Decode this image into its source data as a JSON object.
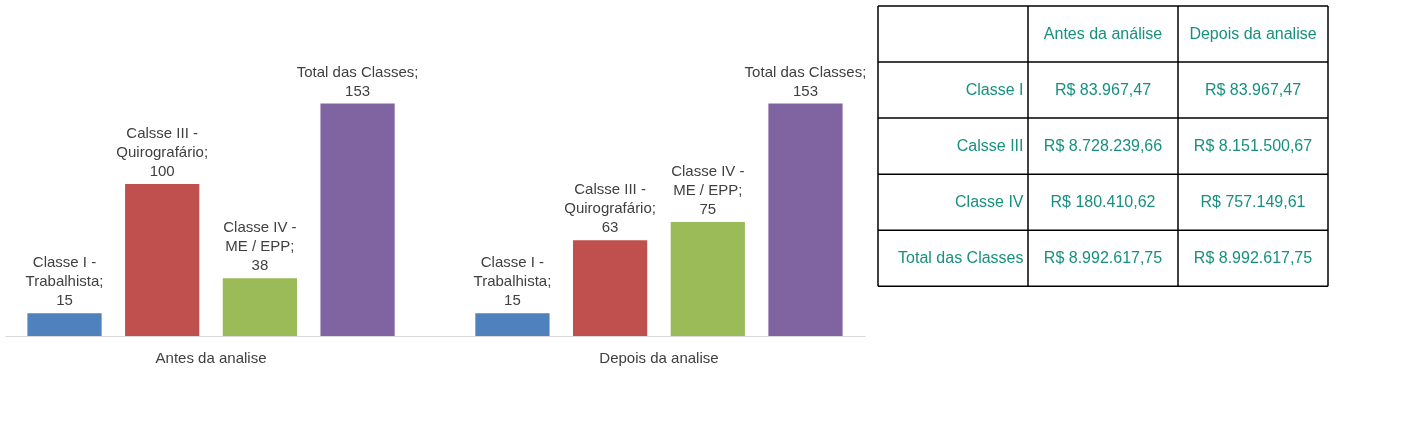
{
  "chart_data": [
    {
      "type": "bar",
      "categories": [
        "Antes da analise",
        "Depois da analise"
      ],
      "data_labels": true,
      "series": [
        {
          "name": "Classe I - Trabalhista;",
          "color": "#4f81bd",
          "values": [
            15,
            15
          ]
        },
        {
          "name": "Calsse III - Quirografário;",
          "color": "#c0504d",
          "values": [
            100,
            63
          ]
        },
        {
          "name": "Classe IV - ME / EPP;",
          "color": "#9bbb59",
          "values": [
            38,
            75
          ]
        },
        {
          "name": "Total das Classes;",
          "color": "#8064a2",
          "values": [
            153,
            153
          ]
        }
      ]
    },
    {
      "type": "other",
      "color": "#17907f",
      "categories": [
        "Antes da análise",
        "Depois da analise"
      ],
      "y_categories": [
        "Classe I",
        "Calsse III",
        "Classe IV",
        "Total das Classes"
      ],
      "cell_labels": [
        [
          "R$ 83.967,47",
          "R$ 83.967,47"
        ],
        [
          "R$ 8.728.239,66",
          "R$ 8.151.500,67"
        ],
        [
          "R$ 180.410,62",
          "R$ 757.149,61"
        ],
        [
          "R$ 8.992.617,75",
          "R$ 8.992.617,75"
        ]
      ]
    }
  ]
}
